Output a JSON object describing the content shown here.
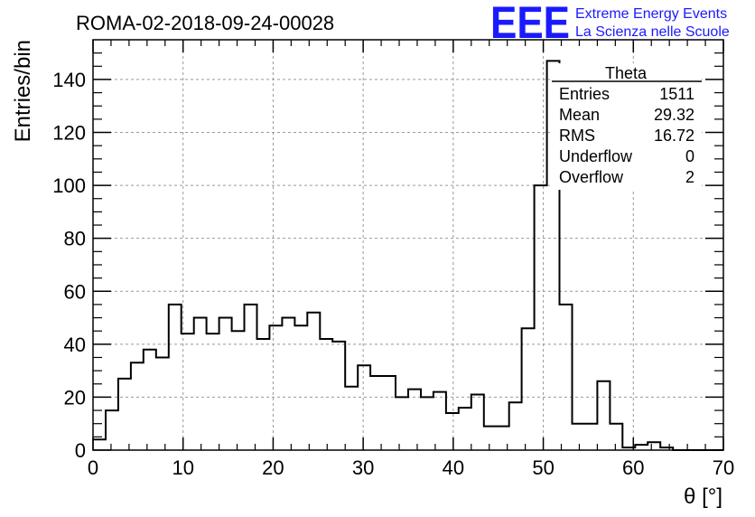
{
  "header": {
    "title": "ROMA-02-2018-09-24-00028",
    "logo_text": "EEE",
    "logo_line1": "Extreme Energy Events",
    "logo_line2": "La Scienza nelle Scuole"
  },
  "colors": {
    "logo": "#1a1aff",
    "grid": "#999999",
    "line": "#000000"
  },
  "chart_data": {
    "type": "histogram",
    "xlabel": "θ [°]",
    "ylabel": "Entries/bin",
    "xlim": [
      0,
      70
    ],
    "ylim": [
      0,
      155
    ],
    "bin_width": 1.4,
    "x_ticks": [
      0,
      10,
      20,
      30,
      40,
      50,
      60,
      70
    ],
    "y_ticks": [
      0,
      20,
      40,
      60,
      80,
      100,
      120,
      140
    ],
    "grid": true,
    "values": [
      4,
      15,
      27,
      33,
      38,
      35,
      55,
      44,
      50,
      44,
      50,
      45,
      55,
      42,
      47,
      50,
      47,
      52,
      42,
      41,
      24,
      32,
      28,
      28,
      20,
      23,
      20,
      22,
      14,
      16,
      21,
      9,
      9,
      18,
      46,
      100,
      147,
      55,
      10,
      10,
      26,
      10,
      1,
      2,
      3,
      1,
      0,
      0,
      0,
      0
    ],
    "stats_box": {
      "title": "Theta",
      "rows": [
        {
          "label": "Entries",
          "value": "1511"
        },
        {
          "label": "Mean",
          "value": "29.32"
        },
        {
          "label": "RMS",
          "value": "16.72"
        },
        {
          "label": "Underflow",
          "value": "0"
        },
        {
          "label": "Overflow",
          "value": "2"
        }
      ],
      "placement": "top-right"
    }
  }
}
